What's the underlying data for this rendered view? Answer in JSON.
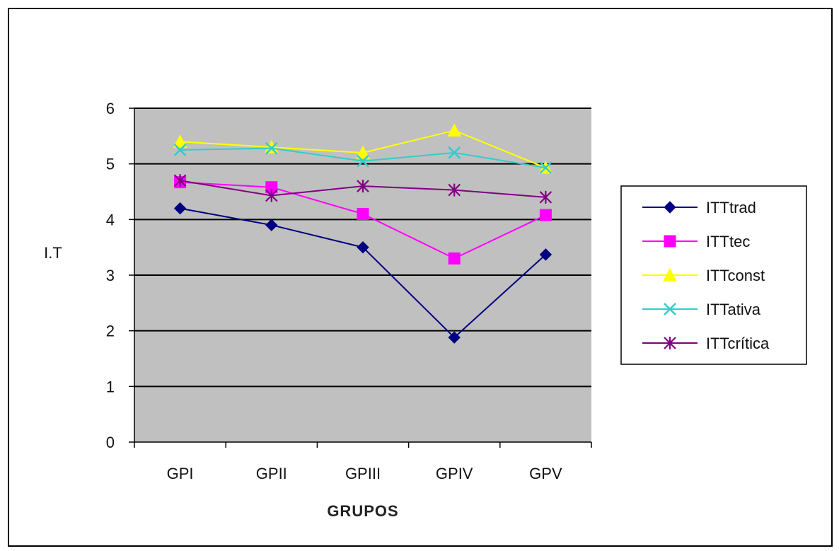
{
  "chart_data": {
    "type": "line",
    "title": "",
    "xlabel": "GRUPOS",
    "ylabel": "I.T",
    "categories": [
      "GPI",
      "GPII",
      "GPIII",
      "GPIV",
      "GPV"
    ],
    "ylim": [
      0,
      6
    ],
    "yticks": [
      0,
      1,
      2,
      3,
      4,
      5,
      6
    ],
    "grid": "horizontal",
    "plot_background": "#c0c0c0",
    "legend_position": "right",
    "series": [
      {
        "name": "ITTtrad",
        "color": "#000080",
        "marker": "diamond",
        "values": [
          4.2,
          3.9,
          3.5,
          1.88,
          3.37
        ]
      },
      {
        "name": "ITTtec",
        "color": "#ff00ff",
        "marker": "square",
        "values": [
          4.67,
          4.58,
          4.1,
          3.3,
          4.08
        ]
      },
      {
        "name": "ITTconst",
        "color": "#ffff00",
        "marker": "triangle",
        "values": [
          5.4,
          5.3,
          5.2,
          5.6,
          4.93
        ]
      },
      {
        "name": "ITTativa",
        "color": "#33cccc",
        "marker": "x",
        "values": [
          5.25,
          5.28,
          5.05,
          5.2,
          4.93
        ]
      },
      {
        "name": "ITTcrítica",
        "color": "#800080",
        "marker": "star",
        "values": [
          4.7,
          4.43,
          4.6,
          4.53,
          4.4
        ]
      }
    ]
  }
}
